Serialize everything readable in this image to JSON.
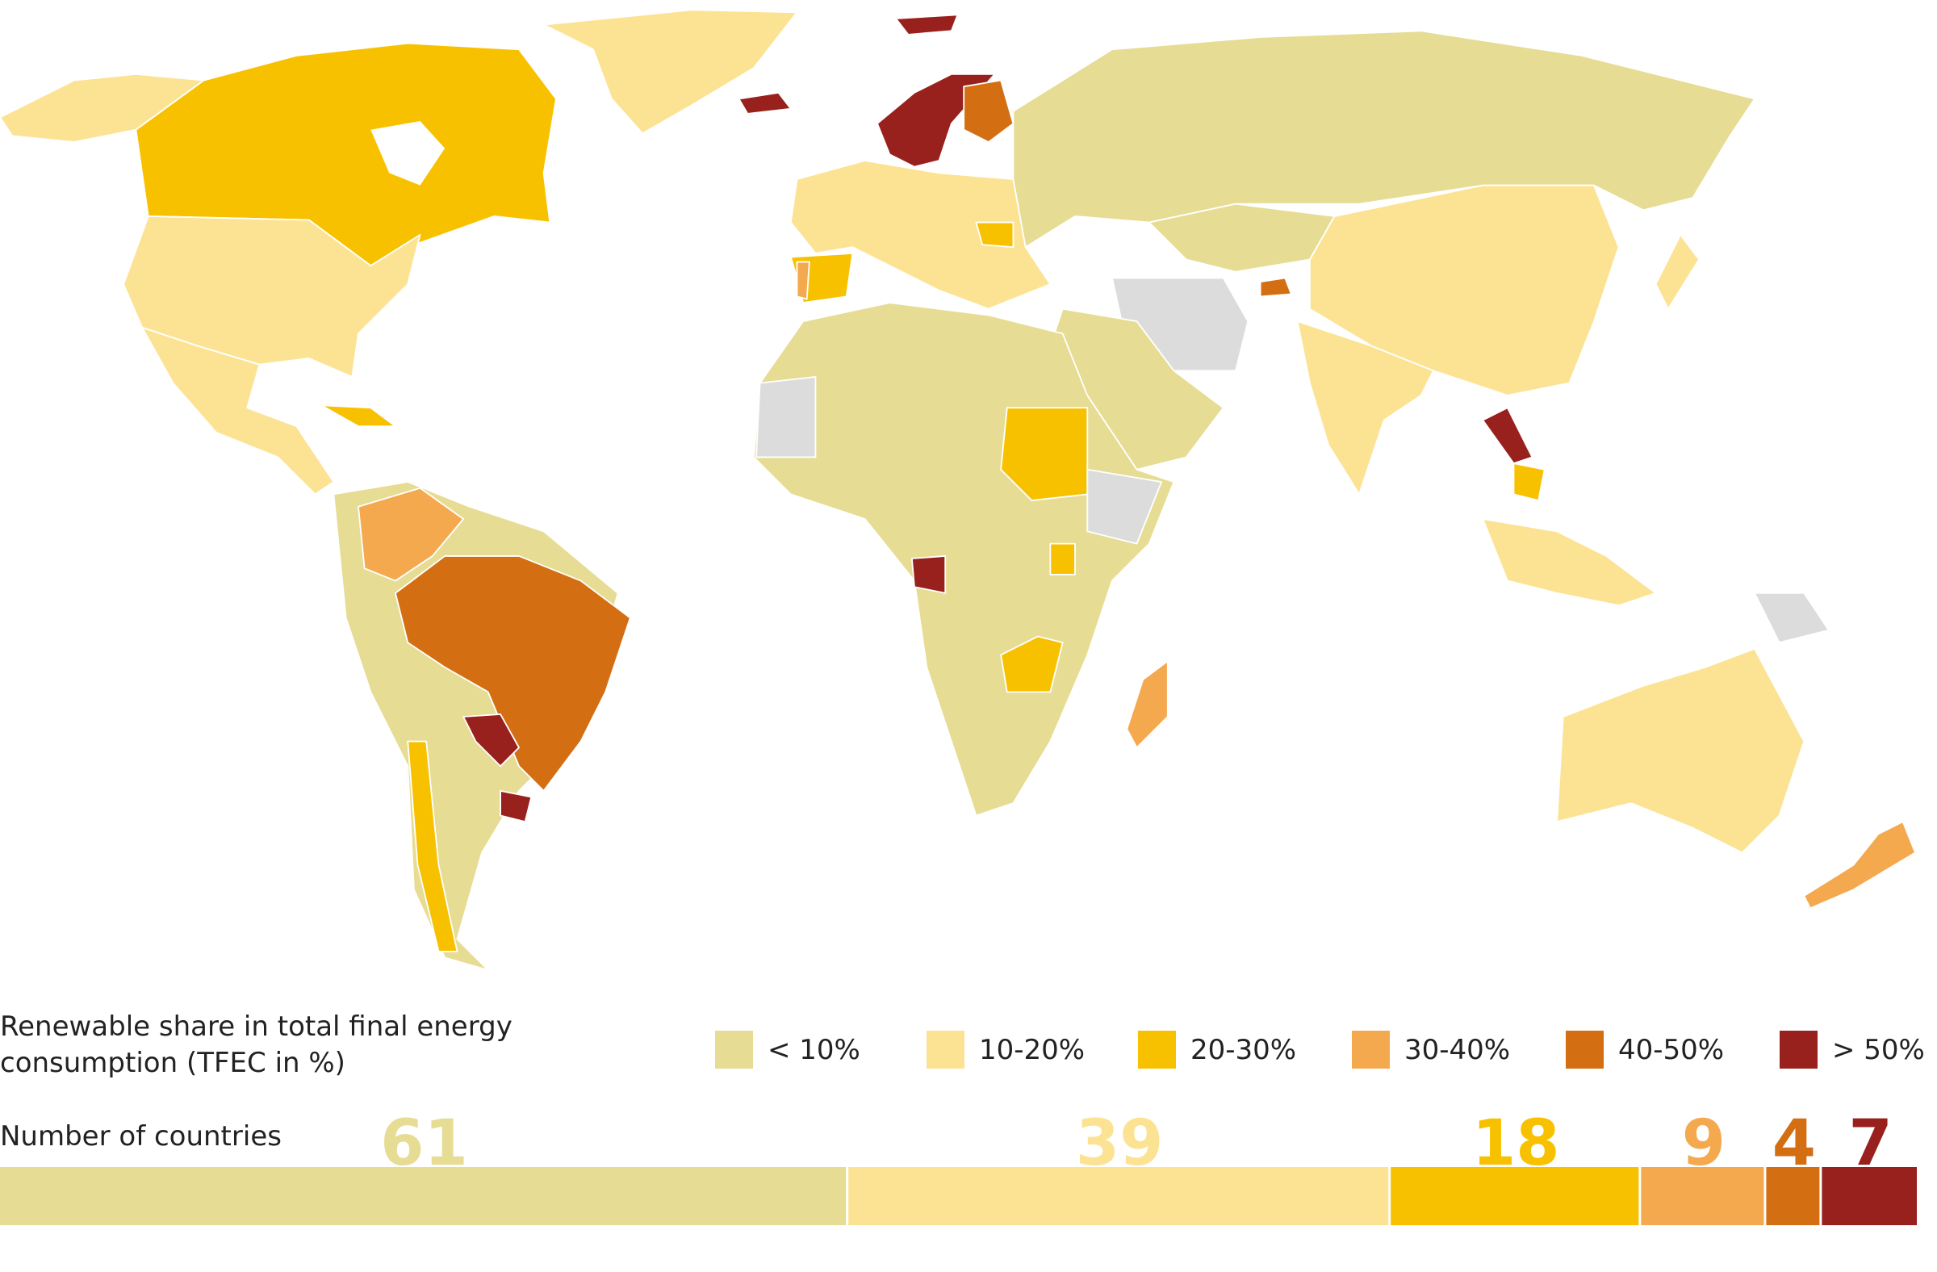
{
  "legend": {
    "title": "Renewable share in total final energy consumption (TFEC in %)",
    "items": [
      {
        "label": "< 10%",
        "color": "#e6dc93"
      },
      {
        "label": "10-20%",
        "color": "#fce394"
      },
      {
        "label": "20-30%",
        "color": "#f8c100"
      },
      {
        "label": "30-40%",
        "color": "#f4a94f"
      },
      {
        "label": "40-50%",
        "color": "#d46e12"
      },
      {
        "label": "> 50%",
        "color": "#98211d"
      }
    ]
  },
  "counts": {
    "title": "Number of countries",
    "values": [
      61,
      39,
      18,
      9,
      4,
      7
    ]
  }
}
